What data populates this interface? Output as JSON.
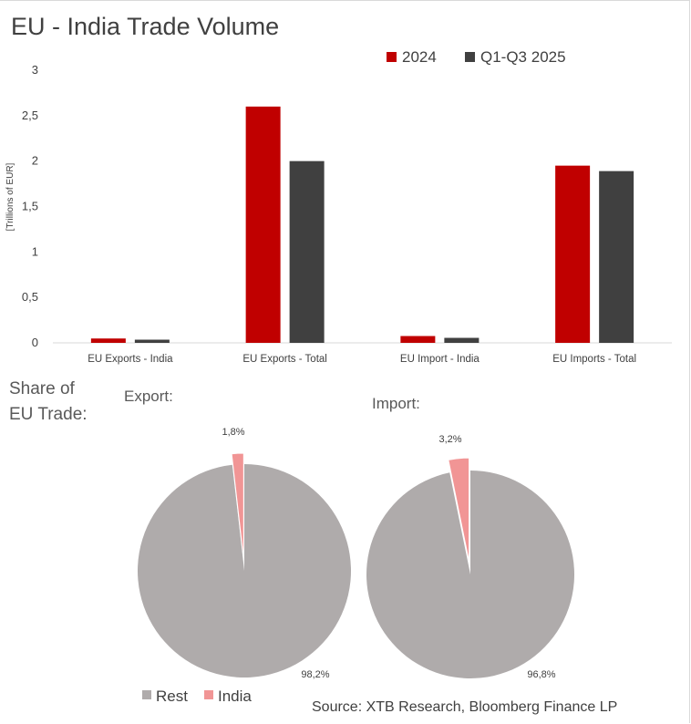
{
  "chart_data": [
    {
      "type": "bar",
      "title": "EU - India Trade Volume",
      "ylabel": "[Trillions of EUR]",
      "xlabel": "",
      "categories": [
        "EU Exports - India",
        "EU Exports - Total",
        "EU Import - India",
        "EU Imports - Total"
      ],
      "ylim": [
        0,
        3
      ],
      "yticks": [
        "0",
        "0,5",
        "1",
        "1,5",
        "2",
        "2,5",
        "3"
      ],
      "legend_position": "top-right",
      "series": [
        {
          "name": "2024",
          "color": "#c00000",
          "values": [
            0.048,
            2.6,
            0.075,
            1.95
          ]
        },
        {
          "name": "Q1-Q3 2025",
          "color": "#404040",
          "values": [
            0.035,
            2.0,
            0.055,
            1.89
          ]
        }
      ]
    },
    {
      "type": "pie",
      "title": "Export:",
      "slices": [
        {
          "name": "India",
          "value": 1.8,
          "label": "1,8%",
          "color": "#f19595"
        },
        {
          "name": "Rest",
          "value": 98.2,
          "label": "98,2%",
          "color": "#afabab"
        }
      ]
    },
    {
      "type": "pie",
      "title": "Import:",
      "slices": [
        {
          "name": "India",
          "value": 3.2,
          "label": "3,2%",
          "color": "#f19595"
        },
        {
          "name": "Rest",
          "value": 96.8,
          "label": "96,8%",
          "color": "#afabab"
        }
      ]
    }
  ],
  "share_label": [
    "Share of",
    "EU Trade:"
  ],
  "pie_legend": [
    {
      "name": "Rest",
      "color": "#afabab"
    },
    {
      "name": "India",
      "color": "#f19595"
    }
  ],
  "source": "Source: XTB Research, Bloomberg Finance LP"
}
